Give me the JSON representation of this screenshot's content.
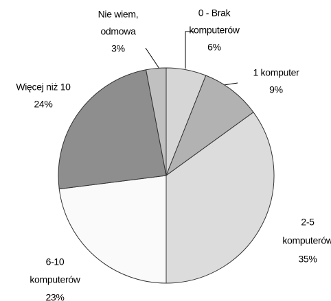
{
  "chart_data": {
    "type": "pie",
    "categories": [
      [
        "0 - Brak",
        "komputerów"
      ],
      [
        "1 komputer"
      ],
      [
        "2-5",
        "komputerów"
      ],
      [
        "6-10",
        "komputerów"
      ],
      [
        "Więcej niż 10"
      ],
      [
        "Nie wiem,",
        "odmowa"
      ]
    ],
    "values": [
      6,
      9,
      35,
      23,
      24,
      3
    ],
    "value_labels": [
      "6%",
      "9%",
      "35%",
      "23%",
      "24%",
      "3%"
    ],
    "colors": [
      "#d6d6d6",
      "#b2b2b2",
      "#dcdcdc",
      "#fafafa",
      "#8e8e8e",
      "#c0c0c0"
    ]
  }
}
